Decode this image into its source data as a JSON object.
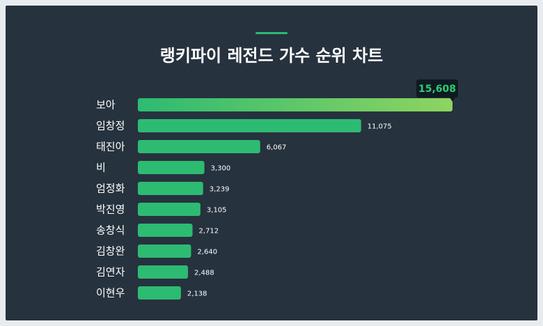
{
  "title": "랭키파이 레전드 가수 순위 차트",
  "colors": {
    "background": "#26323e",
    "bar": "#2dbb72",
    "bar_top_end": "#8fd460",
    "accent": "#2dbb72",
    "tooltip_bg": "#0f1a22",
    "tooltip_text": "#2ecc71"
  },
  "chart_data": {
    "type": "bar",
    "orientation": "horizontal",
    "title": "랭키파이 레전드 가수 순위 차트",
    "categories": [
      "보아",
      "임창정",
      "태진아",
      "비",
      "엄정화",
      "박진영",
      "송창식",
      "김창완",
      "김연자",
      "이현우"
    ],
    "values": [
      15608,
      11075,
      6067,
      3300,
      3239,
      3105,
      2712,
      2640,
      2488,
      2138
    ],
    "value_labels": [
      "15,608",
      "11,075",
      "6,067",
      "3,300",
      "3,239",
      "3,105",
      "2,712",
      "2,640",
      "2,488",
      "2,138"
    ],
    "highlight": {
      "index": 0,
      "label": "15,608"
    },
    "grid": false
  }
}
